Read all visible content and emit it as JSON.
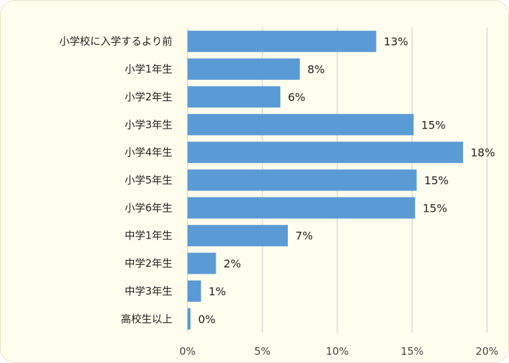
{
  "chart_data": {
    "type": "bar",
    "orientation": "horizontal",
    "categories": [
      "小学校に入学するより前",
      "小学1年生",
      "小学2年生",
      "小学3年生",
      "小学4年生",
      "小学5年生",
      "小学6年生",
      "中学1年生",
      "中学2年生",
      "中学3年生",
      "高校生以上"
    ],
    "values": [
      12.6,
      7.5,
      6.2,
      15.1,
      18.4,
      15.3,
      15.2,
      6.7,
      1.9,
      0.9,
      0.2
    ],
    "data_labels": [
      "13%",
      "8%",
      "6%",
      "15%",
      "18%",
      "15%",
      "15%",
      "7%",
      "2%",
      "1%",
      "0%"
    ],
    "xlim": [
      0,
      20
    ],
    "x_ticks": [
      0,
      5,
      10,
      15,
      20
    ],
    "x_tick_labels": [
      "0%",
      "5%",
      "10%",
      "15%",
      "20%"
    ],
    "bar_color": "#5b9bd5",
    "background_color": "#fffdee",
    "grid": "vertical",
    "legend": "none"
  }
}
